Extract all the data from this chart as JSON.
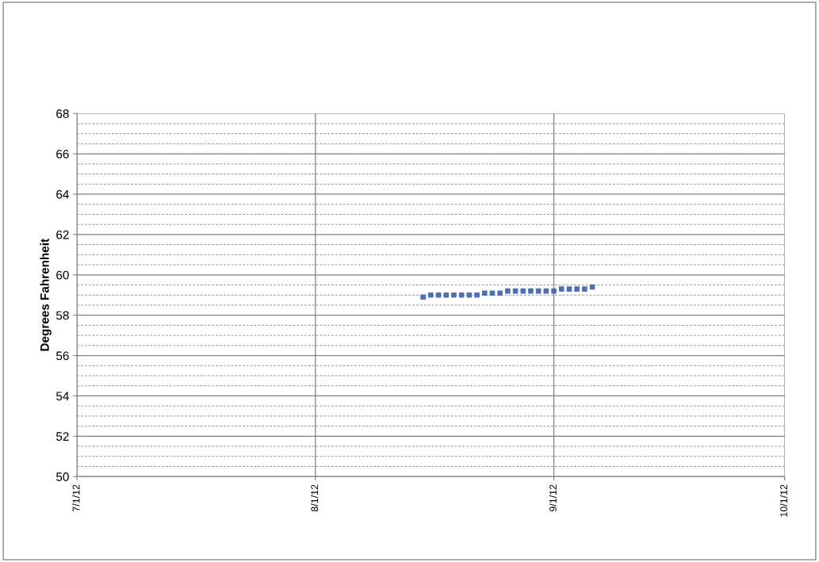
{
  "chart_data": {
    "type": "scatter",
    "ylabel": "Degrees Fahrenheit",
    "marker": "square",
    "grid": true,
    "x": [
      "2012-08-15",
      "2012-08-16",
      "2012-08-17",
      "2012-08-18",
      "2012-08-19",
      "2012-08-20",
      "2012-08-21",
      "2012-08-22",
      "2012-08-23",
      "2012-08-24",
      "2012-08-25",
      "2012-08-26",
      "2012-08-27",
      "2012-08-28",
      "2012-08-29",
      "2012-08-30",
      "2012-08-31",
      "2012-09-01",
      "2012-09-02",
      "2012-09-03",
      "2012-09-04",
      "2012-09-05",
      "2012-09-06"
    ],
    "series": [
      {
        "color": "#4f6fb5",
        "values": [
          58.9,
          59.0,
          59.0,
          59.0,
          59.0,
          59.0,
          59.0,
          59.0,
          59.1,
          59.1,
          59.1,
          59.2,
          59.2,
          59.2,
          59.2,
          59.2,
          59.2,
          59.2,
          59.3,
          59.3,
          59.3,
          59.3,
          59.4
        ]
      }
    ],
    "xlim": [
      "2012-07-01",
      "2012-10-01"
    ],
    "xticks": [
      {
        "value": "2012-07-01",
        "label": "7/1/12"
      },
      {
        "value": "2012-08-01",
        "label": "8/1/12"
      },
      {
        "value": "2012-09-01",
        "label": "9/1/12"
      },
      {
        "value": "2012-10-01",
        "label": "10/1/12"
      }
    ],
    "ylim": [
      50,
      68
    ],
    "yticks": [
      50,
      {
        "value": 50.5,
        "label": null
      },
      {
        "value": 51,
        "label": null
      },
      {
        "value": 51.5,
        "label": null
      },
      52,
      {
        "value": 52.5,
        "label": null
      },
      {
        "value": 53,
        "label": null
      },
      {
        "value": 53.5,
        "label": null
      },
      54,
      {
        "value": 54.5,
        "label": null
      },
      {
        "value": 55,
        "label": null
      },
      {
        "value": 55.5,
        "label": null
      },
      56,
      {
        "value": 56.5,
        "label": null
      },
      {
        "value": 57,
        "label": null
      },
      {
        "value": 57.5,
        "label": null
      },
      58,
      {
        "value": 58.5,
        "label": null
      },
      {
        "value": 59,
        "label": null
      },
      {
        "value": 59.5,
        "label": null
      },
      60,
      {
        "value": 60.5,
        "label": null
      },
      {
        "value": 61,
        "label": null
      },
      {
        "value": 61.5,
        "label": null
      },
      62,
      {
        "value": 62.5,
        "label": null
      },
      {
        "value": 63,
        "label": null
      },
      {
        "value": 63.5,
        "label": null
      },
      64,
      {
        "value": 64.5,
        "label": null
      },
      {
        "value": 65,
        "label": null
      },
      {
        "value": 65.5,
        "label": null
      },
      66,
      {
        "value": 66.5,
        "label": null
      },
      {
        "value": 67,
        "label": null
      },
      {
        "value": 67.5,
        "label": null
      },
      68
    ]
  }
}
